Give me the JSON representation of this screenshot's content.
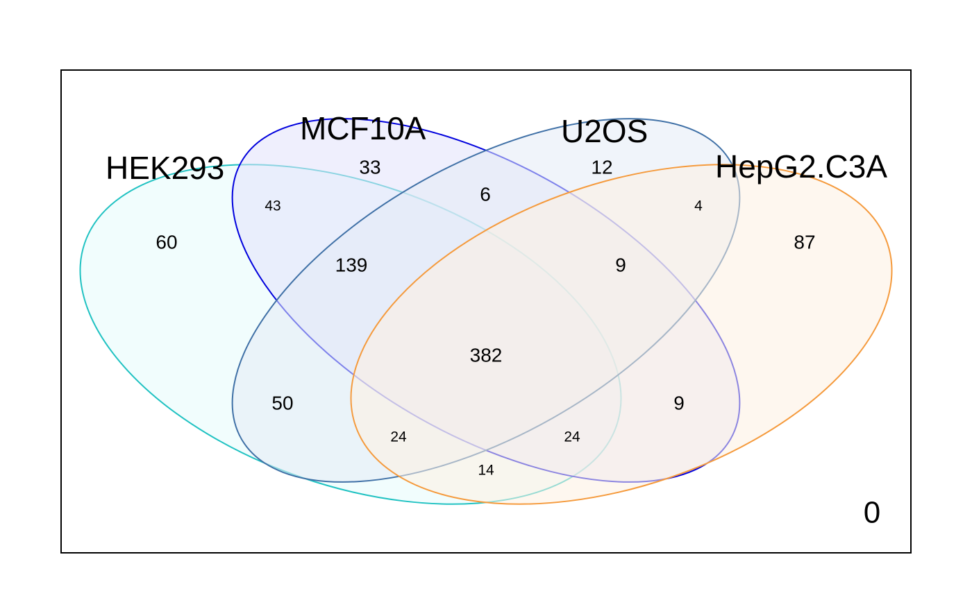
{
  "sets": [
    {
      "name": "HEK293",
      "color": "#20C2C2",
      "fill": "#e6fbfb"
    },
    {
      "name": "MCF10A",
      "color": "#0000DD",
      "fill": "#e2e2fb"
    },
    {
      "name": "U2OS",
      "color": "#3f70a6",
      "fill": "#e3ebf5"
    },
    {
      "name": "HepG2.C3A",
      "color": "#F59A3C",
      "fill": "#fdf0e2"
    }
  ],
  "regions": {
    "hek293_only": "60",
    "mcf10a_only": "33",
    "u2os_only": "12",
    "hepg2_only": "87",
    "hek293_mcf10a": "43",
    "mcf10a_u2os": "6",
    "u2os_hepg2": "4",
    "hek293_mcf10a_u2os": "139",
    "mcf10a_u2os_hepg2": "9",
    "all_four": "382",
    "hek293_u2os": "50",
    "mcf10a_hepg2": "9",
    "hek293_u2os_hepg2": "24",
    "hek293_mcf10a_hepg2": "24",
    "hek293_hepg2": "14"
  },
  "outside": "0"
}
